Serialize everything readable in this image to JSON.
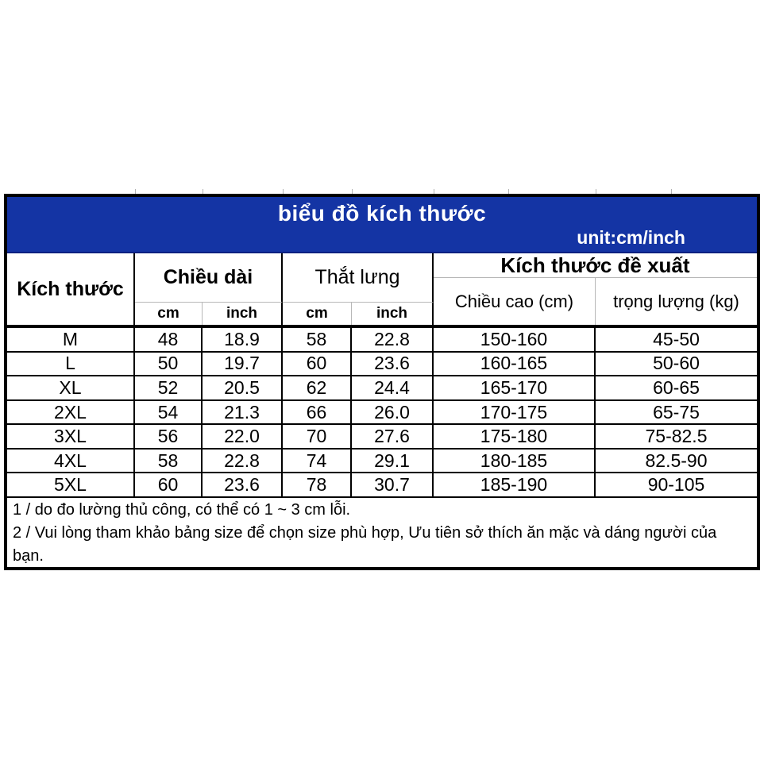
{
  "colors": {
    "banner_blue": "#1434a4",
    "banner_text": "#ffffff",
    "grid_black": "#000000",
    "grid_light_grey": "#b7b7b7",
    "page_background": "#ffffff"
  },
  "banner": {
    "title": "biểu đồ kích thước",
    "unit_label": "unit:cm/inch"
  },
  "table": {
    "size_column_header": "Kích thước",
    "groups": [
      {
        "label": "Chiều dài",
        "sub": [
          "cm",
          "inch"
        ]
      },
      {
        "label": "Thắt lưng",
        "sub": [
          "cm",
          "inch"
        ]
      },
      {
        "label": "Kích thước đề xuất",
        "sub": [
          "Chiều cao (cm)",
          "trọng lượng (kg)"
        ]
      }
    ],
    "rows": [
      {
        "size": "M",
        "values": [
          "48",
          "18.9",
          "58",
          "22.8",
          "150-160",
          "45-50"
        ]
      },
      {
        "size": "L",
        "values": [
          "50",
          "19.7",
          "60",
          "23.6",
          "160-165",
          "50-60"
        ]
      },
      {
        "size": "XL",
        "values": [
          "52",
          "20.5",
          "62",
          "24.4",
          "165-170",
          "60-65"
        ]
      },
      {
        "size": "2XL",
        "values": [
          "54",
          "21.3",
          "66",
          "26.0",
          "170-175",
          "65-75"
        ]
      },
      {
        "size": "3XL",
        "values": [
          "56",
          "22.0",
          "70",
          "27.6",
          "175-180",
          "75-82.5"
        ]
      },
      {
        "size": "4XL",
        "values": [
          "58",
          "22.8",
          "74",
          "29.1",
          "180-185",
          "82.5-90"
        ]
      },
      {
        "size": "5XL",
        "values": [
          "60",
          "23.6",
          "78",
          "30.7",
          "185-190",
          "90-105"
        ]
      }
    ]
  },
  "notes": [
    "1 / do đo lường thủ công, có thể có 1 ~ 3 cm lỗi.",
    "2 / Vui lòng tham khảo bảng size để chọn size phù hợp, Ưu tiên sở thích ăn mặc và dáng người của bạn."
  ],
  "chart_data": {
    "type": "table",
    "title": "biểu đồ kích thước",
    "unit": "cm/inch",
    "columns": [
      "Kích thước",
      "Chiều dài cm",
      "Chiều dài inch",
      "Thắt lưng cm",
      "Thắt lưng inch",
      "Chiều cao (cm)",
      "trọng lượng (kg)"
    ],
    "rows": [
      [
        "M",
        48,
        18.9,
        58,
        22.8,
        "150-160",
        "45-50"
      ],
      [
        "L",
        50,
        19.7,
        60,
        23.6,
        "160-165",
        "50-60"
      ],
      [
        "XL",
        52,
        20.5,
        62,
        24.4,
        "165-170",
        "60-65"
      ],
      [
        "2XL",
        54,
        21.3,
        66,
        26.0,
        "170-175",
        "65-75"
      ],
      [
        "3XL",
        56,
        22.0,
        70,
        27.6,
        "175-180",
        "75-82.5"
      ],
      [
        "4XL",
        58,
        22.8,
        74,
        29.1,
        "180-185",
        "82.5-90"
      ],
      [
        "5XL",
        60,
        23.6,
        78,
        30.7,
        "185-190",
        "90-105"
      ]
    ],
    "footnotes": [
      "1 / do đo lường thủ công, có thể có 1 ~ 3 cm lỗi.",
      "2 / Vui lòng tham khảo bảng size để chọn size phù hợp, Ưu tiên sở thích ăn mặc và dáng người của bạn."
    ]
  }
}
